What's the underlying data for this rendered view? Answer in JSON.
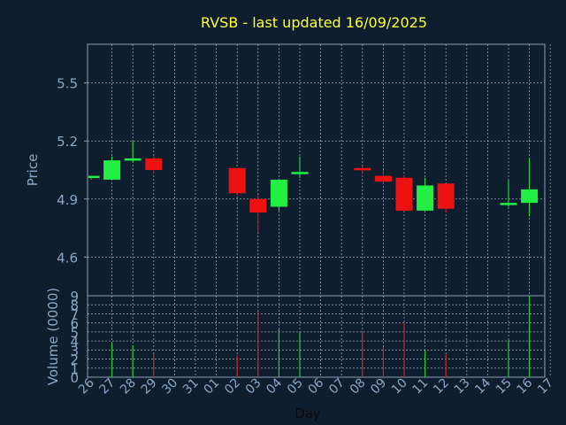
{
  "chart_data": {
    "type": "candlestick",
    "title": "RVSB - last updated 16/09/2025",
    "xlabel": "Day",
    "price_ylabel": "Price",
    "volume_ylabel": "Volume (0000)",
    "x_ticks": [
      "26",
      "27",
      "28",
      "29",
      "30",
      "31",
      "01",
      "02",
      "03",
      "04",
      "05",
      "06",
      "07",
      "08",
      "09",
      "10",
      "11",
      "12",
      "13",
      "14",
      "15",
      "16",
      "17"
    ],
    "price_ylim": [
      4.4,
      5.7
    ],
    "price_ticks": [
      4.6,
      4.9,
      5.2,
      5.5
    ],
    "volume_ylim": [
      0,
      9
    ],
    "volume_ticks": [
      0,
      1,
      2,
      3,
      4,
      5,
      6,
      7,
      8,
      9
    ],
    "grid": true,
    "colors": {
      "background": "#0f1e2e",
      "frame": "#8aa0bc",
      "grid": "#c0ccd8",
      "title": "#ffff33",
      "label": "#8aa8c8",
      "up": "#22ee44",
      "down": "#ee1111",
      "volume_up": "#22cc33",
      "volume_down": "#cc2222"
    },
    "candles": [
      {
        "day": "26",
        "open": 5.01,
        "high": 5.02,
        "low": 5.0,
        "close": 5.02,
        "volume": 0.0
      },
      {
        "day": "27",
        "open": 5.0,
        "high": 5.12,
        "low": 5.0,
        "close": 5.1,
        "volume": 3.8
      },
      {
        "day": "28",
        "open": 5.1,
        "high": 5.2,
        "low": 5.09,
        "close": 5.11,
        "volume": 3.5
      },
      {
        "day": "29",
        "open": 5.11,
        "high": 5.12,
        "low": 5.03,
        "close": 5.05,
        "volume": 2.6
      },
      {
        "day": "02",
        "open": 5.06,
        "high": 5.06,
        "low": 4.92,
        "close": 4.93,
        "volume": 2.4
      },
      {
        "day": "03",
        "open": 4.9,
        "high": 4.92,
        "low": 4.73,
        "close": 4.83,
        "volume": 7.3
      },
      {
        "day": "04",
        "open": 4.86,
        "high": 5.0,
        "low": 4.84,
        "close": 5.0,
        "volume": 5.3
      },
      {
        "day": "05",
        "open": 5.03,
        "high": 5.12,
        "low": 5.01,
        "close": 5.04,
        "volume": 4.9
      },
      {
        "day": "08",
        "open": 5.06,
        "high": 5.07,
        "low": 5.03,
        "close": 5.05,
        "volume": 5.0
      },
      {
        "day": "09",
        "open": 5.02,
        "high": 5.05,
        "low": 4.98,
        "close": 4.99,
        "volume": 3.3
      },
      {
        "day": "10",
        "open": 5.01,
        "high": 5.02,
        "low": 4.84,
        "close": 4.84,
        "volume": 6.0
      },
      {
        "day": "11",
        "open": 4.84,
        "high": 5.01,
        "low": 4.84,
        "close": 4.97,
        "volume": 3.0
      },
      {
        "day": "12",
        "open": 4.98,
        "high": 4.98,
        "low": 4.83,
        "close": 4.85,
        "volume": 2.5
      },
      {
        "day": "15",
        "open": 4.87,
        "high": 5.0,
        "low": 4.86,
        "close": 4.88,
        "volume": 4.1
      },
      {
        "day": "16",
        "open": 4.88,
        "high": 5.11,
        "low": 4.81,
        "close": 4.95,
        "volume": 9.0
      }
    ]
  }
}
